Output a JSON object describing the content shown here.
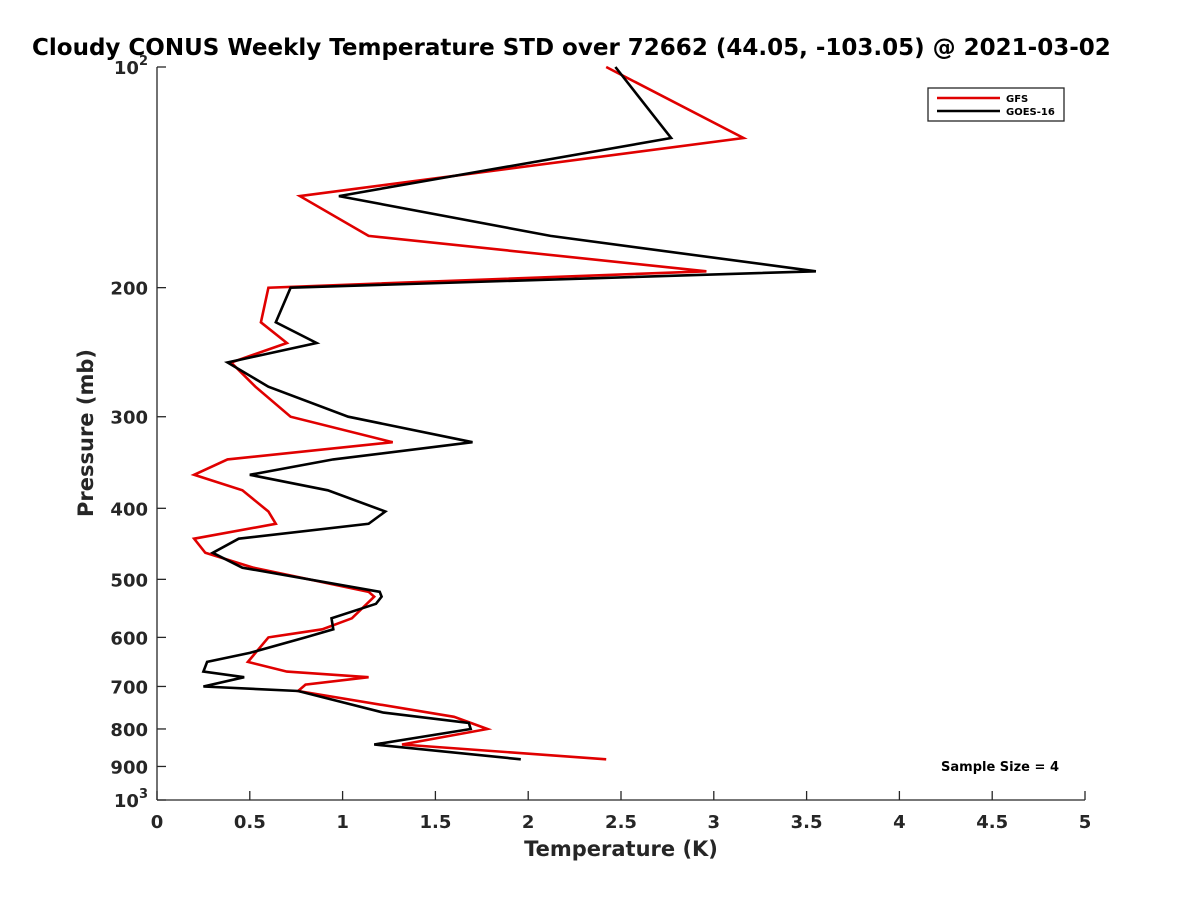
{
  "chart_data": {
    "type": "line",
    "title": "Cloudy CONUS Weekly Temperature STD over 72662 (44.05, -103.05) @ 2021-03-02",
    "xlabel": "Temperature (K)",
    "ylabel": "Pressure (mb)",
    "xlim": [
      0,
      5
    ],
    "ylim": [
      100,
      1000
    ],
    "yscale": "log",
    "y_reversed": true,
    "grid": false,
    "legend_position": "top-right",
    "xticks": [
      0,
      0.5,
      1,
      1.5,
      2,
      2.5,
      3,
      3.5,
      4,
      4.5,
      5
    ],
    "xtick_labels": [
      "0",
      "0.5",
      "1",
      "1.5",
      "2",
      "2.5",
      "3",
      "3.5",
      "4",
      "4.5",
      "5"
    ],
    "yticks": [
      100,
      200,
      300,
      400,
      500,
      600,
      700,
      800,
      900,
      1000
    ],
    "ytick_labels": [
      {
        "base": "10",
        "exp": "2"
      },
      {
        "base": "200",
        "exp": ""
      },
      {
        "base": "300",
        "exp": ""
      },
      {
        "base": "400",
        "exp": ""
      },
      {
        "base": "500",
        "exp": ""
      },
      {
        "base": "600",
        "exp": ""
      },
      {
        "base": "700",
        "exp": ""
      },
      {
        "base": "800",
        "exp": ""
      },
      {
        "base": "900",
        "exp": ""
      },
      {
        "base": "10",
        "exp": "3"
      }
    ],
    "series": [
      {
        "name": "GFS",
        "color": "#e00000",
        "points": [
          [
            2.42,
            100
          ],
          [
            3.16,
            125
          ],
          [
            0.77,
            150
          ],
          [
            1.14,
            170
          ],
          [
            2.96,
            190
          ],
          [
            0.6,
            200
          ],
          [
            0.56,
            223
          ],
          [
            0.7,
            238
          ],
          [
            0.4,
            253
          ],
          [
            0.53,
            273
          ],
          [
            0.72,
            300
          ],
          [
            1.27,
            325
          ],
          [
            0.38,
            343
          ],
          [
            0.2,
            360
          ],
          [
            0.46,
            378
          ],
          [
            0.6,
            404
          ],
          [
            0.64,
            420
          ],
          [
            0.2,
            440
          ],
          [
            0.26,
            460
          ],
          [
            0.52,
            482
          ],
          [
            1.14,
            520
          ],
          [
            1.17,
            528
          ],
          [
            1.05,
            565
          ],
          [
            0.89,
            585
          ],
          [
            0.6,
            600
          ],
          [
            0.49,
            648
          ],
          [
            0.7,
            668
          ],
          [
            1.14,
            680
          ],
          [
            0.8,
            696
          ],
          [
            0.76,
            710
          ],
          [
            1.6,
            770
          ],
          [
            1.78,
            800
          ],
          [
            1.32,
            840
          ],
          [
            2.42,
            880
          ]
        ]
      },
      {
        "name": "GOES-16",
        "color": "#000000",
        "points": [
          [
            2.47,
            100
          ],
          [
            2.77,
            125
          ],
          [
            0.98,
            150
          ],
          [
            2.12,
            170
          ],
          [
            3.55,
            190
          ],
          [
            0.72,
            200
          ],
          [
            0.64,
            223
          ],
          [
            0.86,
            238
          ],
          [
            0.38,
            253
          ],
          [
            0.6,
            273
          ],
          [
            1.03,
            300
          ],
          [
            1.7,
            325
          ],
          [
            0.95,
            343
          ],
          [
            0.5,
            360
          ],
          [
            0.92,
            378
          ],
          [
            1.23,
            404
          ],
          [
            1.14,
            420
          ],
          [
            0.44,
            440
          ],
          [
            0.3,
            460
          ],
          [
            0.46,
            482
          ],
          [
            1.2,
            520
          ],
          [
            1.21,
            528
          ],
          [
            1.18,
            540
          ],
          [
            0.94,
            565
          ],
          [
            0.95,
            585
          ],
          [
            0.8,
            600
          ],
          [
            0.5,
            630
          ],
          [
            0.27,
            648
          ],
          [
            0.25,
            668
          ],
          [
            0.47,
            680
          ],
          [
            0.25,
            700
          ],
          [
            0.76,
            710
          ],
          [
            1.22,
            760
          ],
          [
            1.68,
            785
          ],
          [
            1.69,
            800
          ],
          [
            1.17,
            840
          ],
          [
            1.96,
            880
          ]
        ]
      }
    ],
    "annotation": "Sample Size = 4"
  }
}
